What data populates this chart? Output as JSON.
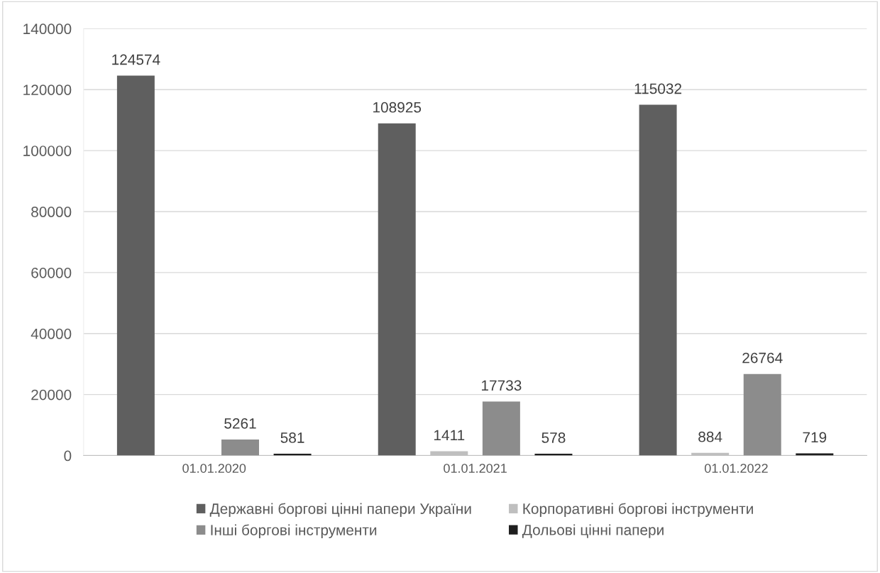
{
  "chart_data": {
    "type": "bar",
    "categories": [
      "01.01.2020",
      "01.01.2021",
      "01.01.2022"
    ],
    "series": [
      {
        "name": "Державні боргові цінні папери України",
        "color": "#5f5f5f",
        "values": [
          124574,
          108925,
          115032
        ]
      },
      {
        "name": "Корпоративні боргові інструменти",
        "color": "#bfbfbf",
        "values": [
          null,
          1411,
          884
        ]
      },
      {
        "name": "Інші боргові інструменти",
        "color": "#8c8c8c",
        "values": [
          5261,
          17733,
          26764
        ]
      },
      {
        "name": "Дольові цінні папери",
        "color": "#1e1e1e",
        "values": [
          581,
          578,
          719
        ]
      }
    ],
    "ylim": [
      0,
      140000
    ],
    "yticks": [
      0,
      20000,
      40000,
      60000,
      80000,
      100000,
      120000,
      140000
    ],
    "grid": "y",
    "legend": "bottom",
    "data_labels": true
  }
}
